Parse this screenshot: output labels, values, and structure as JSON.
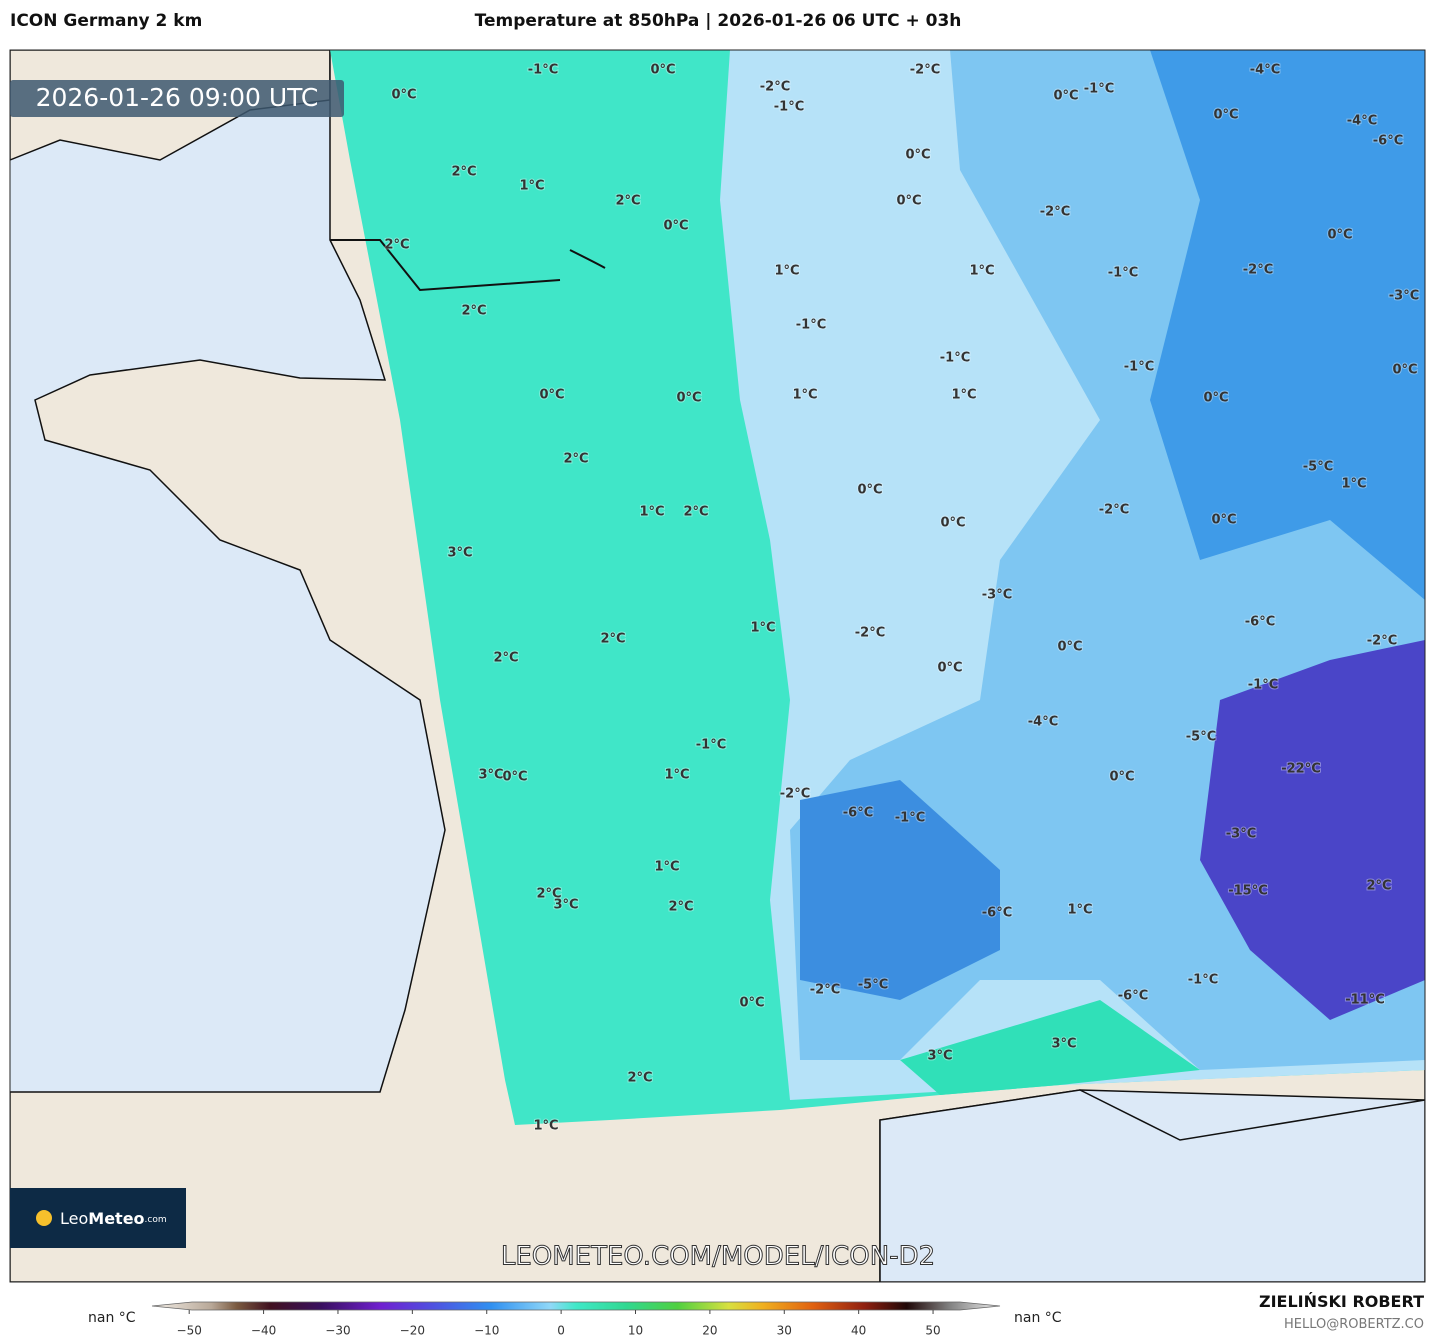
{
  "header": {
    "model": "ICON Germany 2 km",
    "title": "Temperature at 850hPa | 2026-01-26 06 UTC + 03h"
  },
  "map": {
    "timestamp": "2026-01-26 09:00 UTC",
    "watermark": "LEOMETEO.COM/MODEL/ICON-D2",
    "logo": {
      "light": "Leo",
      "bold": "Meteo",
      "suffix": ".com"
    },
    "labels": [
      "-1°C",
      "0°C",
      "0°C",
      "-2°C",
      "-1°C",
      "-2°C",
      "0°C",
      "-1°C",
      "-4°C",
      "0°C",
      "-4°C",
      "-6°C",
      "0°C",
      "2°C",
      "1°C",
      "2°C",
      "0°C",
      "-2°C",
      "0°C",
      "0°C",
      "2°C",
      "1°C",
      "1°C",
      "-1°C",
      "-2°C",
      "-3°C",
      "2°C",
      "-1°C",
      "-1°C",
      "-1°C",
      "0°C",
      "0°C",
      "0°C",
      "1°C",
      "1°C",
      "0°C",
      "2°C",
      "-5°C",
      "1°C",
      "0°C",
      "-2°C",
      "1°C",
      "2°C",
      "0°C",
      "0°C",
      "3°C",
      "-3°C",
      "-6°C",
      "1°C",
      "-2°C",
      "2°C",
      "-2°C",
      "0°C",
      "2°C",
      "0°C",
      "-1°C",
      "-4°C",
      "-5°C",
      "-1°C",
      "-22°C",
      "3°C",
      "0°C",
      "1°C",
      "0°C",
      "-2°C",
      "-6°C",
      "-1°C",
      "-3°C",
      "1°C",
      "2°C",
      "-15°C",
      "2°C",
      "3°C",
      "2°C",
      "-6°C",
      "1°C",
      "-1°C",
      "-2°C",
      "-5°C",
      "-6°C",
      "-11°C",
      "0°C",
      "3°C",
      "3°C",
      "2°C",
      "1°C"
    ]
  },
  "colorbar": {
    "nan_left": "nan °C",
    "nan_right": "nan °C",
    "lim": [
      -55,
      59
    ],
    "ticks": [
      {
        "value": -50,
        "label": "−50"
      },
      {
        "value": -40,
        "label": "−40"
      },
      {
        "value": -30,
        "label": "−30"
      },
      {
        "value": -20,
        "label": "−20"
      },
      {
        "value": -10,
        "label": "−10"
      },
      0,
      10,
      20,
      30,
      40,
      50
    ]
  },
  "footer": {
    "author": "ZIELIŃSKI ROBERT",
    "email": "HELLO@ROBERTZ.CO"
  }
}
